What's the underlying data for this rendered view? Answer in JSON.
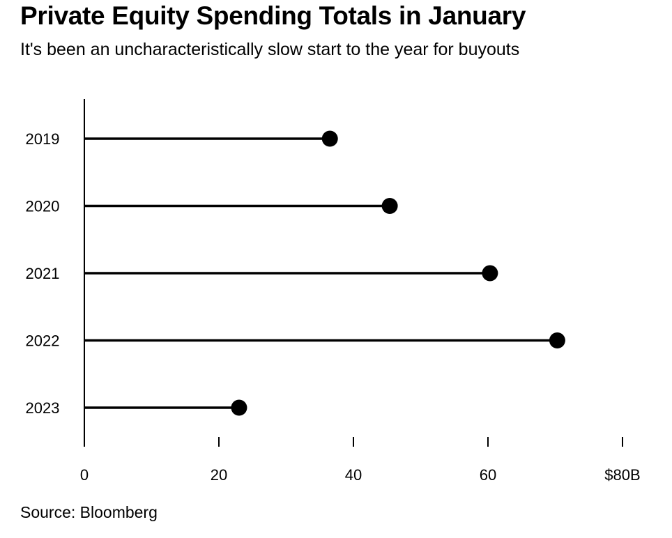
{
  "title": "Private Equity Spending Totals in January",
  "subtitle": "It's been an uncharacteristically slow start to the year for buyouts",
  "source": "Source: Bloomberg",
  "chart_data": {
    "type": "bar",
    "style": "lollipop",
    "orientation": "horizontal",
    "title": "Private Equity Spending Totals in January",
    "subtitle": "It's been an uncharacteristically slow start to the year for buyouts",
    "categories": [
      "2019",
      "2020",
      "2021",
      "2022",
      "2023"
    ],
    "values": [
      36.5,
      45.4,
      60.3,
      70.3,
      23.0
    ],
    "xlim": [
      0,
      80
    ],
    "x_ticks": [
      0,
      20,
      40,
      60,
      80
    ],
    "x_tick_labels": [
      "0",
      "20",
      "40",
      "60",
      "$80B"
    ],
    "xlabel": "",
    "ylabel": "",
    "grid": false,
    "legend": "none",
    "colors": {
      "stem": "#000000",
      "dot": "#000000",
      "axis": "#000000"
    }
  }
}
